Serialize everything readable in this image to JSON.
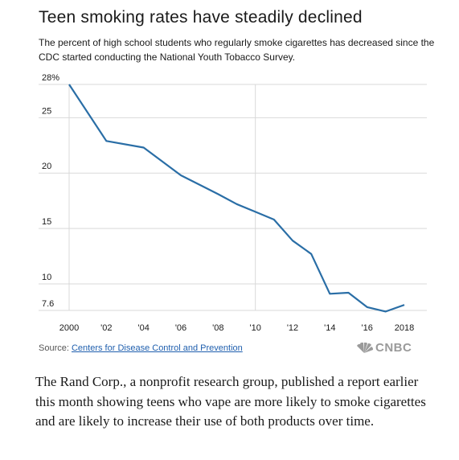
{
  "chart_data": {
    "type": "line",
    "title": "Teen smoking rates have steadily declined",
    "subtitle": "The percent of high school students who regularly smoke cigarettes has decreased since the CDC started conducting the National Youth Tobacco Survey.",
    "x": [
      2000,
      2002,
      2004,
      2006,
      2008,
      2009,
      2010,
      2011,
      2012,
      2013,
      2014,
      2015,
      2016,
      2017,
      2018
    ],
    "series": [
      {
        "values": [
          28.0,
          22.9,
          22.3,
          19.8,
          18.1,
          17.2,
          16.5,
          15.8,
          13.9,
          12.7,
          9.1,
          9.2,
          7.9,
          7.5,
          8.1
        ]
      }
    ],
    "xlim": [
      2000,
      2018
    ],
    "ylim": [
      7.6,
      28
    ],
    "yticks": [
      {
        "value": 28,
        "label": "28%"
      },
      {
        "value": 25,
        "label": "25"
      },
      {
        "value": 20,
        "label": "20"
      },
      {
        "value": 15,
        "label": "15"
      },
      {
        "value": 10,
        "label": "10"
      },
      {
        "value": 7.6,
        "label": "7.6"
      }
    ],
    "xticks": [
      {
        "value": 2000,
        "label": "2000"
      },
      {
        "value": 2002,
        "label": "'02"
      },
      {
        "value": 2004,
        "label": "'04"
      },
      {
        "value": 2006,
        "label": "'06"
      },
      {
        "value": 2008,
        "label": "'08"
      },
      {
        "value": 2010,
        "label": "'10"
      },
      {
        "value": 2012,
        "label": "'12"
      },
      {
        "value": 2014,
        "label": "'14"
      },
      {
        "value": 2016,
        "label": "'16"
      },
      {
        "value": 2018,
        "label": "2018"
      }
    ],
    "grid": true,
    "line_color": "#2a6ea6",
    "grid_color": "#d9d9d9"
  },
  "source": {
    "prefix": "Source:",
    "link_text": "Centers for Disease Control and Prevention"
  },
  "logo": {
    "text": "CNBC",
    "icon": "peacock-icon"
  },
  "article": {
    "text": "The Rand Corp., a nonprofit research group, published a report earlier this month showing teens who vape are more likely to smoke cigarettes and are likely to increase their use of both products over time."
  }
}
